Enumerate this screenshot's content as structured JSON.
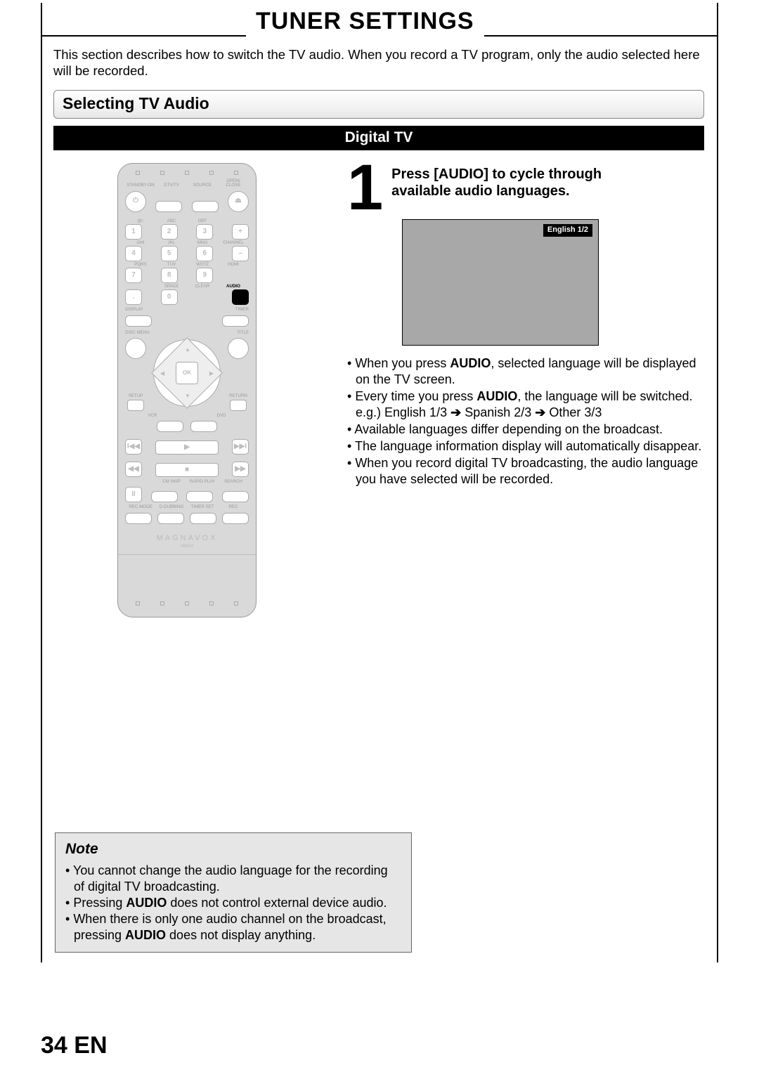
{
  "page": {
    "title": "Tuner Settings",
    "intro": "This section describes how to switch the TV audio. When you record a TV program, only the audio selected here will be recorded.",
    "subheading": "Selecting TV Audio",
    "black_bar": "Digital TV",
    "page_number": "34",
    "lang_code": "EN"
  },
  "step": {
    "number": "1",
    "line1": "Press [AUDIO] to cycle through",
    "line2": "available audio languages.",
    "osd_label": "English 1/2",
    "bullets_html": [
      "When you press <b>AUDIO</b>, selected language will be displayed on the TV screen.",
      "Every time you press <b>AUDIO</b>, the language will be switched.<br>e.g.) English 1/3 <span class='arrow'>➔</span> Spanish 2/3 <span class='arrow'>➔</span> Other 3/3",
      "Available languages differ depending on the broadcast.",
      "The language information display will automatically disappear.",
      "When you record digital TV broadcasting, the audio language you have selected will be recorded."
    ]
  },
  "note": {
    "title": "Note",
    "items_html": [
      "You cannot change the audio language for the recording of digital TV broadcasting.",
      "Pressing <b>AUDIO</b> does not control external device audio.",
      "When there is only one audio channel on the broadcast, pressing <b>AUDIO</b> does not display anything."
    ]
  },
  "remote": {
    "brand": "MAGNAVOX",
    "model": "NB904",
    "top_labels": [
      "STANDBY-ON",
      "DTV/TV",
      "SOURCE",
      "OPEN/\nCLOSE"
    ],
    "num_labels": [
      [
        "@/:",
        "ABC",
        "DEF",
        ""
      ],
      [
        "GHI",
        "JKL",
        "MNO",
        "CHANNEL"
      ],
      [
        "PQRS",
        "TUV",
        "WXYZ",
        "HDMI"
      ],
      [
        "",
        "SPACE",
        "CLEAR",
        "AUDIO"
      ]
    ],
    "numbers": [
      [
        "1",
        "2",
        "3",
        "+"
      ],
      [
        "4",
        "5",
        "6",
        "–"
      ],
      [
        "7",
        "8",
        "9",
        ""
      ],
      [
        ".",
        "0",
        "",
        ""
      ]
    ],
    "mid_left": "DISPLAY",
    "mid_right": "TIMER",
    "disc_menu": "DISC MENU",
    "title": "TITLE",
    "setup": "SETUP",
    "ret": "RETURN",
    "ok": "OK",
    "vcr": "VCR",
    "dvd": "DVD",
    "row_a": [
      "I◀◀",
      "▶",
      "▶▶I"
    ],
    "row_b": [
      "◀◀",
      "■",
      "▶▶"
    ],
    "row_c_lbl": [
      "CM SKIP",
      "RAPID PLAY",
      "SEARCH"
    ],
    "pause": "II",
    "row_d_lbl": [
      "REC MODE",
      "D.DUBBING",
      "TIMER SET",
      "REC"
    ]
  },
  "colors": {
    "remote_bg": "#d9d9d9",
    "screen_bg": "#a8a8a8",
    "note_bg": "#e6e6e6"
  }
}
